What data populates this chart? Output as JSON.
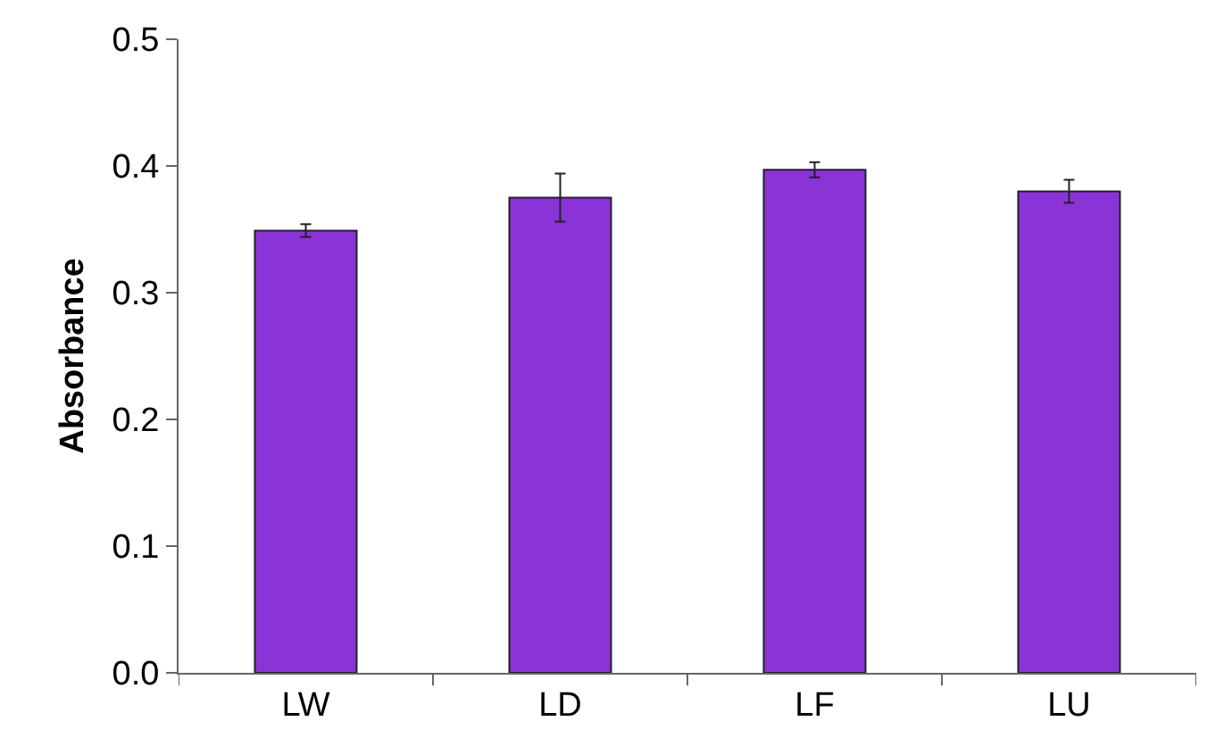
{
  "chart_data": {
    "type": "bar",
    "ylabel": "Absorbance",
    "categories": [
      "LW",
      "LD",
      "LF",
      "LU"
    ],
    "values": [
      0.349,
      0.375,
      0.397,
      0.38
    ],
    "errors": [
      0.005,
      0.019,
      0.006,
      0.009
    ],
    "color": "#8a33d6",
    "ylim": [
      0,
      0.5
    ],
    "yticks": [
      {
        "value": 0,
        "label": "0.0"
      },
      0.1,
      0.2,
      0.3,
      0.4,
      0.5
    ],
    "grid": false
  }
}
